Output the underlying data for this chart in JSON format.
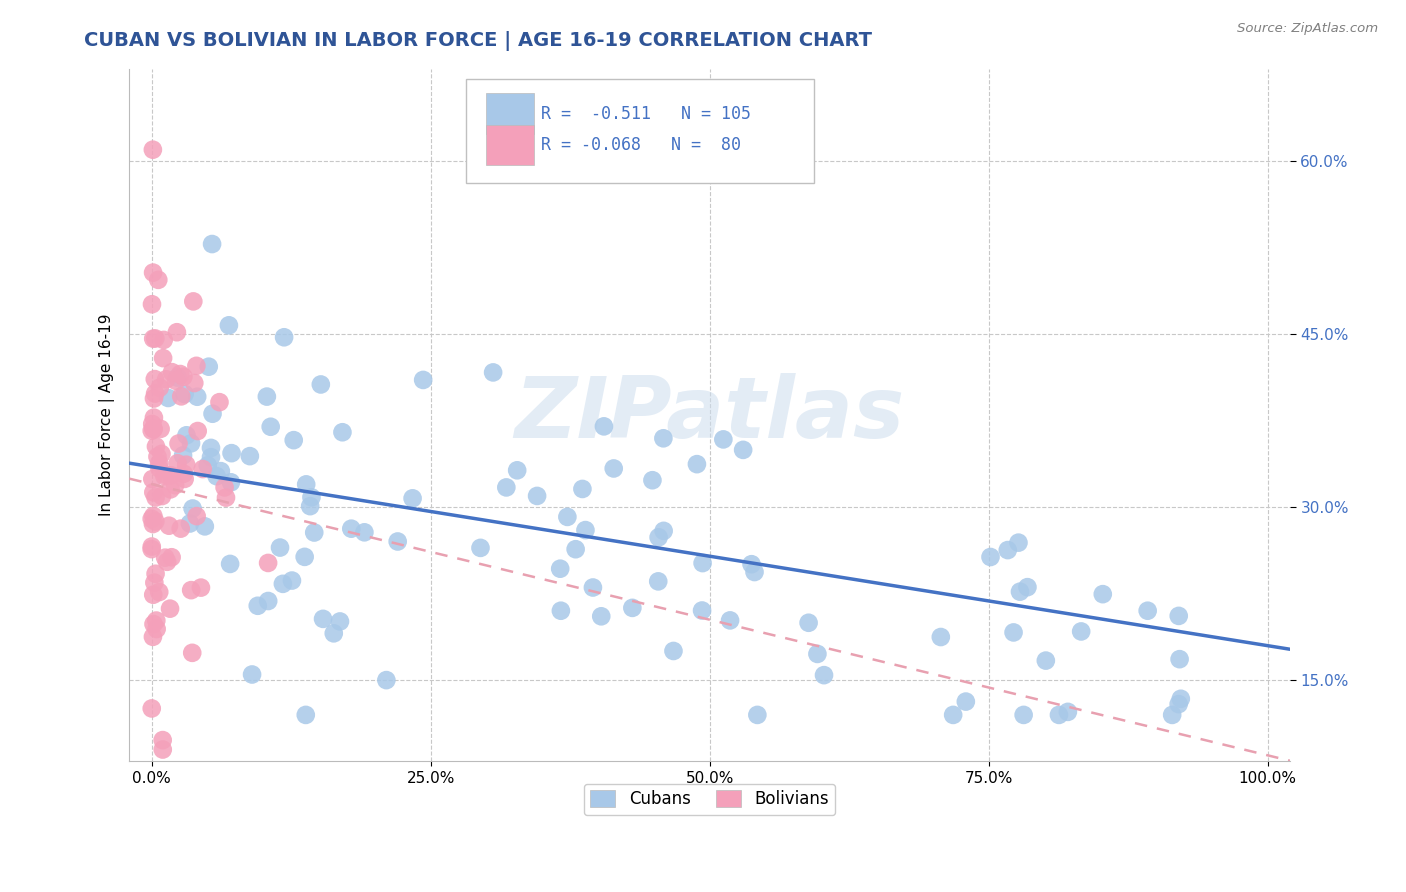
{
  "title": "CUBAN VS BOLIVIAN IN LABOR FORCE | AGE 16-19 CORRELATION CHART",
  "source_text": "Source: ZipAtlas.com",
  "ylabel": "In Labor Force | Age 16-19",
  "y_ticks": [
    0.15,
    0.3,
    0.45,
    0.6
  ],
  "y_tick_labels": [
    "15.0%",
    "30.0%",
    "45.0%",
    "60.0%"
  ],
  "x_ticks": [
    0.0,
    0.25,
    0.5,
    0.75,
    1.0
  ],
  "x_tick_labels": [
    "0.0%",
    "25.0%",
    "50.0%",
    "75.0%",
    "100.0%"
  ],
  "xlim": [
    -0.02,
    1.02
  ],
  "ylim": [
    0.08,
    0.68
  ],
  "cuban_R": -0.511,
  "cuban_N": 105,
  "bolivian_R": -0.068,
  "bolivian_N": 80,
  "cuban_color": "#A8C8E8",
  "bolivian_color": "#F4A0BA",
  "cuban_line_color": "#4472C4",
  "bolivian_line_color": "#E8A0B0",
  "background_color": "#FFFFFF",
  "grid_color": "#C8C8C8",
  "legend_label_cubans": "Cubans",
  "legend_label_bolivians": "Bolivians",
  "title_color": "#2F5496",
  "title_fontsize": 14,
  "source_color": "#808080"
}
